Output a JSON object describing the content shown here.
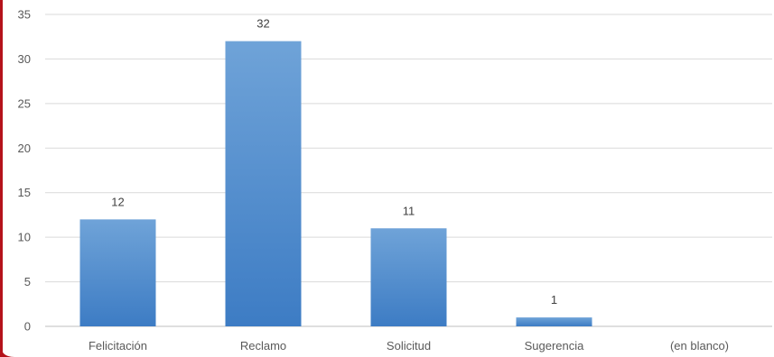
{
  "chart_data": {
    "type": "bar",
    "categories": [
      "Felicitación",
      "Reclamo",
      "Solicitud",
      "Sugerencia",
      "(en blanco)"
    ],
    "values": [
      12,
      32,
      11,
      1,
      null
    ],
    "data_labels": [
      "12",
      "32",
      "11",
      "1",
      ""
    ],
    "ylim": [
      0,
      35
    ],
    "yticks": [
      0,
      5,
      10,
      15,
      20,
      25,
      30,
      35
    ],
    "grid": true,
    "legend": "none",
    "title": "",
    "xlabel": "",
    "ylabel": ""
  },
  "colors": {
    "bar_top": "#6fa3d8",
    "bar_bottom": "#3d7cc4",
    "grid": "#d9d9d9",
    "axis": "#bfbfbf",
    "border_accent": "#b5121b"
  }
}
